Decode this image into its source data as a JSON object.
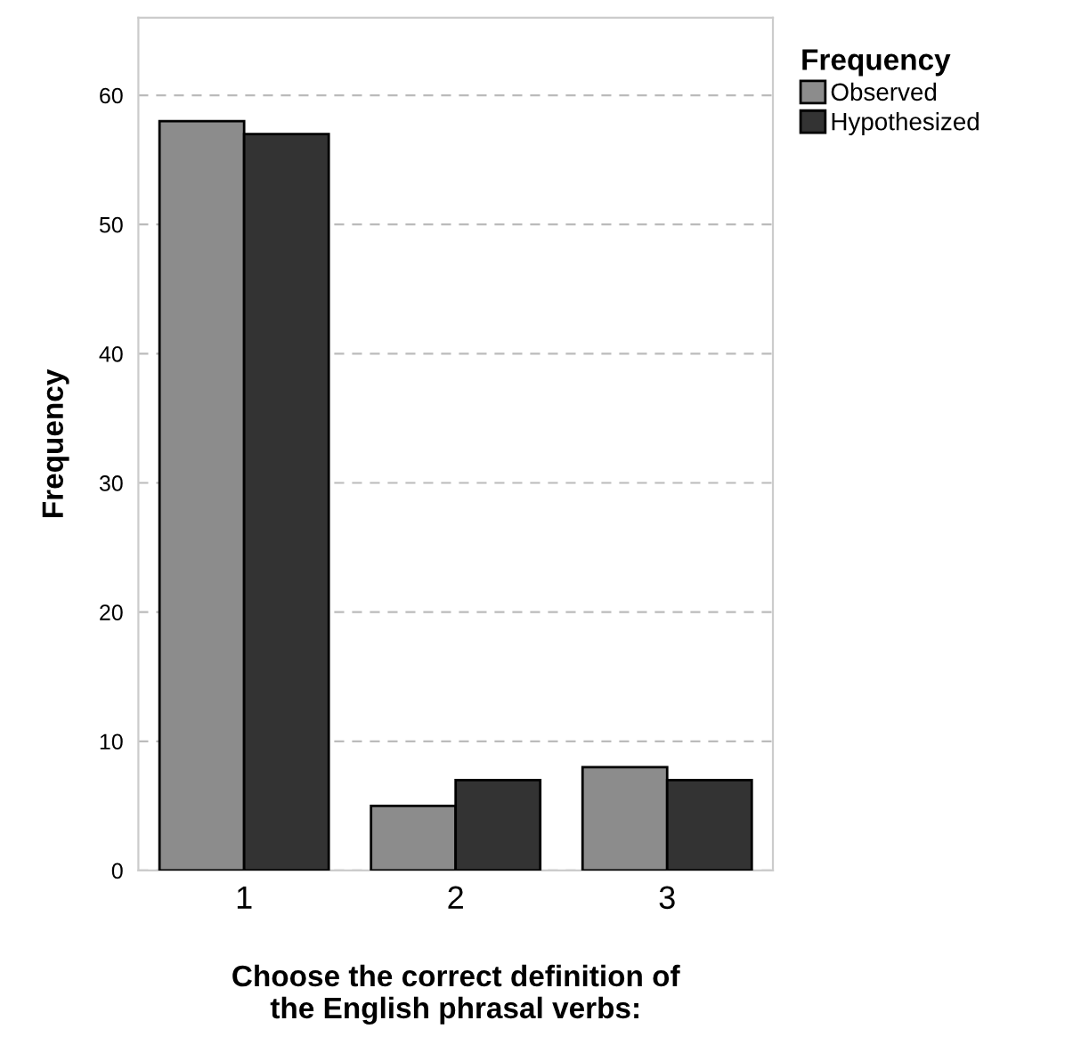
{
  "chart_data": {
    "type": "bar",
    "xlabel": "Choose the correct definition of\nthe English phrasal verbs:",
    "ylabel": "Frequency",
    "legend_title": "Frequency",
    "categories": [
      "1",
      "2",
      "3"
    ],
    "series": [
      {
        "name": "Observed",
        "color": "#8c8c8c",
        "values": [
          58,
          5,
          8
        ]
      },
      {
        "name": "Hypothesized",
        "color": "#333333",
        "values": [
          57,
          7,
          7
        ]
      }
    ],
    "ylim": [
      0,
      66
    ],
    "yticks": [
      0,
      10,
      20,
      30,
      40,
      50,
      60
    ],
    "grid": "y",
    "legend": "top right"
  }
}
